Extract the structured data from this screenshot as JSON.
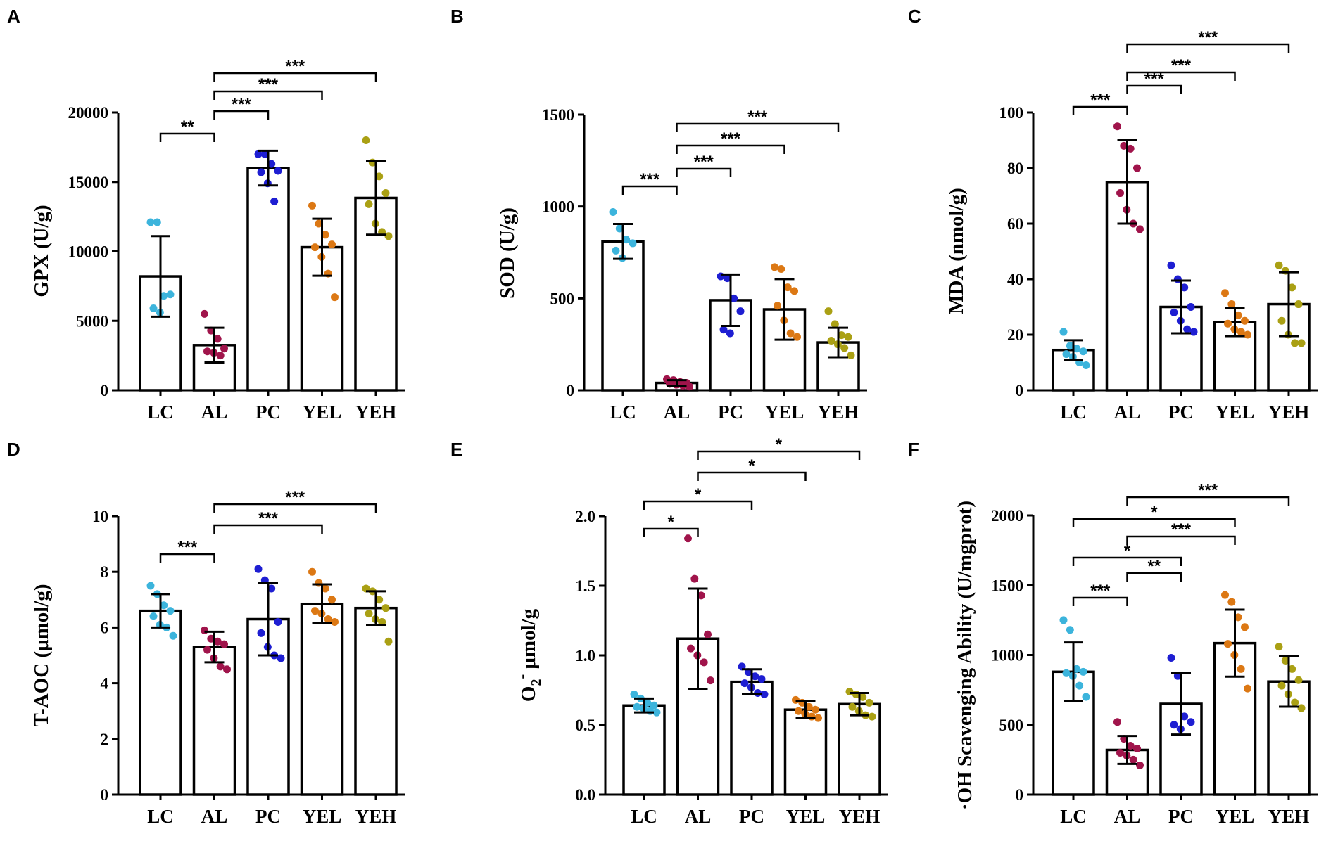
{
  "colors": {
    "LC": "#3cb4dc",
    "AL": "#a0144b",
    "PC": "#1e1ed2",
    "YEL": "#dc7814",
    "YEH": "#aaa014"
  },
  "chart_data": [
    {
      "panel": "A",
      "type": "bar",
      "ylabel": "GPX (U/g)",
      "ylim": [
        0,
        20000
      ],
      "yticks": [
        0,
        5000,
        10000,
        15000,
        20000
      ],
      "ytick_labels": [
        "0",
        "5000",
        "10000",
        "15000",
        "20000"
      ],
      "categories": [
        "LC",
        "AL",
        "PC",
        "YEL",
        "YEH"
      ],
      "values": [
        8200,
        3250,
        16000,
        10300,
        13850
      ],
      "errors": [
        2900,
        1250,
        1250,
        2050,
        2650
      ],
      "points": [
        [
          12100,
          12100,
          6800,
          6900,
          5900,
          5600
        ],
        [
          5500,
          4300,
          3700,
          3000,
          2800,
          2700,
          2500
        ],
        [
          17000,
          17000,
          16300,
          15800,
          15700,
          14900,
          13600
        ],
        [
          13300,
          12000,
          11200,
          10500,
          10300,
          9600,
          8400,
          6700
        ],
        [
          18000,
          16400,
          15400,
          14200,
          13400,
          12000,
          11400,
          11100
        ]
      ],
      "comparisons": [
        {
          "from": "LC",
          "to": "AL",
          "label": "**"
        },
        {
          "from": "AL",
          "to": "PC",
          "label": "***"
        },
        {
          "from": "AL",
          "to": "YEL",
          "label": "***"
        },
        {
          "from": "AL",
          "to": "YEH",
          "label": "***"
        }
      ]
    },
    {
      "panel": "B",
      "type": "bar",
      "ylabel": "SOD (U/g)",
      "ylim": [
        0,
        1500
      ],
      "yticks": [
        0,
        500,
        1000,
        1500
      ],
      "ytick_labels": [
        "0",
        "500",
        "1000",
        "1500"
      ],
      "categories": [
        "LC",
        "AL",
        "PC",
        "YEL",
        "YEH"
      ],
      "values": [
        810,
        40,
        490,
        440,
        260
      ],
      "errors": [
        95,
        15,
        140,
        165,
        80
      ],
      "points": [
        [
          970,
          880,
          820,
          800,
          760,
          720
        ],
        [
          60,
          55,
          45,
          40,
          35,
          30,
          25,
          20
        ],
        [
          620,
          610,
          500,
          430,
          330,
          310
        ],
        [
          670,
          660,
          560,
          540,
          460,
          380,
          310,
          290
        ],
        [
          430,
          360,
          300,
          290,
          270,
          250,
          230,
          190
        ]
      ],
      "comparisons": [
        {
          "from": "LC",
          "to": "AL",
          "label": "***"
        },
        {
          "from": "AL",
          "to": "PC",
          "label": "***"
        },
        {
          "from": "AL",
          "to": "YEL",
          "label": "***"
        },
        {
          "from": "AL",
          "to": "YEH",
          "label": "***"
        }
      ]
    },
    {
      "panel": "C",
      "type": "bar",
      "ylabel": "MDA (nmol/g)",
      "ylim": [
        0,
        100
      ],
      "yticks": [
        0,
        20,
        40,
        60,
        80,
        100
      ],
      "ytick_labels": [
        "0",
        "20",
        "40",
        "60",
        "80",
        "100"
      ],
      "categories": [
        "LC",
        "AL",
        "PC",
        "YEL",
        "YEH"
      ],
      "values": [
        14.5,
        75,
        30,
        24.5,
        31
      ],
      "errors": [
        3.5,
        15,
        9.5,
        5,
        11.5
      ],
      "points": [
        [
          21,
          16,
          15,
          14,
          13,
          12,
          10,
          9
        ],
        [
          95,
          88,
          87,
          80,
          71,
          65,
          60,
          58
        ],
        [
          45,
          40,
          37,
          30,
          28,
          25,
          22,
          21
        ],
        [
          35,
          31,
          27,
          25,
          24,
          22,
          21,
          20
        ],
        [
          45,
          43,
          37,
          31,
          25,
          20,
          17,
          17
        ]
      ],
      "comparisons": [
        {
          "from": "LC",
          "to": "AL",
          "label": "***"
        },
        {
          "from": "AL",
          "to": "PC",
          "label": "***"
        },
        {
          "from": "AL",
          "to": "YEL",
          "label": "***"
        },
        {
          "from": "AL",
          "to": "YEH",
          "label": "***"
        }
      ]
    },
    {
      "panel": "D",
      "type": "bar",
      "ylabel": "T-AOC (μmol/g)",
      "ylim": [
        0,
        10
      ],
      "yticks": [
        0,
        2,
        4,
        6,
        8,
        10
      ],
      "ytick_labels": [
        "0",
        "2",
        "4",
        "6",
        "8",
        "10"
      ],
      "categories": [
        "LC",
        "AL",
        "PC",
        "YEL",
        "YEH"
      ],
      "values": [
        6.6,
        5.3,
        6.3,
        6.85,
        6.7
      ],
      "errors": [
        0.6,
        0.55,
        1.3,
        0.7,
        0.6
      ],
      "points": [
        [
          7.5,
          7.2,
          6.8,
          6.6,
          6.4,
          6.1,
          6.0,
          5.7
        ],
        [
          5.9,
          5.6,
          5.5,
          5.4,
          5.2,
          4.9,
          4.6,
          4.5
        ],
        [
          8.1,
          7.7,
          7.4,
          6.2,
          5.8,
          5.3,
          5.0,
          4.9
        ],
        [
          8.0,
          7.6,
          7.4,
          7.0,
          6.6,
          6.5,
          6.3,
          6.2
        ],
        [
          7.4,
          7.3,
          7.0,
          6.7,
          6.5,
          6.3,
          6.2,
          5.5
        ]
      ],
      "comparisons": [
        {
          "from": "LC",
          "to": "AL",
          "label": "***"
        },
        {
          "from": "AL",
          "to": "YEL",
          "label": "***"
        },
        {
          "from": "AL",
          "to": "YEH",
          "label": "***"
        }
      ]
    },
    {
      "panel": "E",
      "type": "bar",
      "ylabel": "O₂⁻ μmol/g",
      "ylim": [
        0,
        2.0
      ],
      "yticks": [
        0,
        0.5,
        1.0,
        1.5,
        2.0
      ],
      "ytick_labels": [
        "0.0",
        "0.5",
        "1.0",
        "1.5",
        "2.0"
      ],
      "categories": [
        "LC",
        "AL",
        "PC",
        "YEL",
        "YEH"
      ],
      "values": [
        0.64,
        1.12,
        0.81,
        0.61,
        0.65
      ],
      "errors": [
        0.05,
        0.36,
        0.09,
        0.06,
        0.08
      ],
      "points": [
        [
          0.72,
          0.69,
          0.66,
          0.64,
          0.63,
          0.62,
          0.6,
          0.59
        ],
        [
          1.84,
          1.55,
          1.43,
          1.15,
          1.05,
          1.0,
          0.95,
          0.82
        ],
        [
          0.92,
          0.88,
          0.85,
          0.83,
          0.8,
          0.77,
          0.73,
          0.72
        ],
        [
          0.68,
          0.66,
          0.63,
          0.61,
          0.6,
          0.58,
          0.56,
          0.55
        ],
        [
          0.74,
          0.72,
          0.7,
          0.66,
          0.63,
          0.6,
          0.57,
          0.56
        ]
      ],
      "comparisons": [
        {
          "from": "LC",
          "to": "AL",
          "label": "*"
        },
        {
          "from": "LC",
          "to": "PC",
          "label": "*"
        },
        {
          "from": "AL",
          "to": "YEL",
          "label": "*"
        },
        {
          "from": "AL",
          "to": "YEH",
          "label": "*"
        }
      ]
    },
    {
      "panel": "F",
      "type": "bar",
      "ylabel": "·OH Scavenging Ability (U/mgprot)",
      "ylim": [
        0,
        2000
      ],
      "yticks": [
        0,
        500,
        1000,
        1500,
        2000
      ],
      "ytick_labels": [
        "0",
        "500",
        "1000",
        "1500",
        "2000"
      ],
      "categories": [
        "LC",
        "AL",
        "PC",
        "YEL",
        "YEH"
      ],
      "values": [
        880,
        320,
        650,
        1085,
        810
      ],
      "errors": [
        210,
        100,
        220,
        240,
        180
      ],
      "points": [
        [
          1250,
          1180,
          900,
          880,
          870,
          850,
          780,
          700
        ],
        [
          520,
          400,
          350,
          330,
          300,
          280,
          250,
          210
        ],
        [
          980,
          850,
          560,
          520,
          500,
          470
        ],
        [
          1430,
          1380,
          1270,
          1200,
          1080,
          1000,
          900,
          760
        ],
        [
          1060,
          960,
          900,
          820,
          780,
          720,
          660,
          620
        ]
      ],
      "comparisons": [
        {
          "from": "LC",
          "to": "AL",
          "label": "***"
        },
        {
          "from": "AL",
          "to": "PC",
          "label": "**"
        },
        {
          "from": "LC",
          "to": "PC",
          "label": "*"
        },
        {
          "from": "AL",
          "to": "YEL",
          "label": "***"
        },
        {
          "from": "LC",
          "to": "YEL",
          "label": "*"
        },
        {
          "from": "AL",
          "to": "YEH",
          "label": "***"
        }
      ]
    }
  ]
}
